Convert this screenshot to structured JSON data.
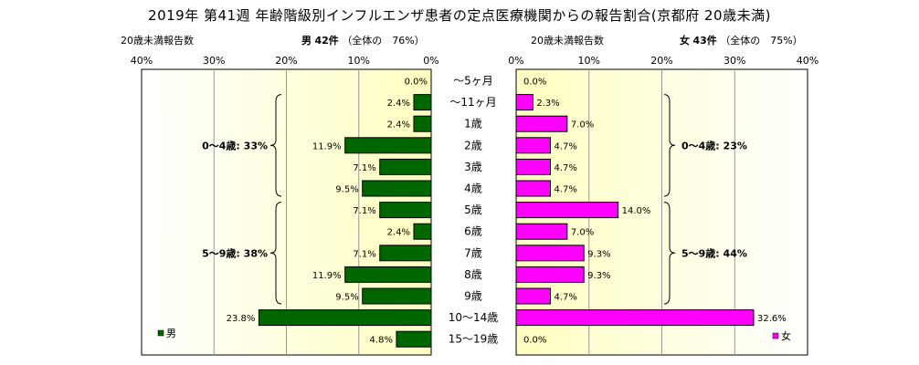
{
  "title": "2019年 第41週 年齢階級別インフルエンザ患者の定点医療機関からの報告割合(京都府 20歳未満)",
  "left_header": {
    "count_label": "20歳未満報告数",
    "sex": "男",
    "count": "42件",
    "share": "（全体の　76%）"
  },
  "right_header": {
    "count_label": "20歳未満報告数",
    "sex": "女",
    "count": "43件",
    "share": "（全体の　75%）"
  },
  "chart_data": {
    "type": "bar",
    "orientation": "horizontal-butterfly",
    "categories": [
      "～5ヶ月",
      "～11ヶ月",
      "1歳",
      "2歳",
      "3歳",
      "4歳",
      "5歳",
      "6歳",
      "7歳",
      "8歳",
      "9歳",
      "10～14歳",
      "15～19歳"
    ],
    "series": [
      {
        "name": "男",
        "values": [
          0.0,
          2.4,
          2.4,
          11.9,
          7.1,
          9.5,
          7.1,
          2.4,
          7.1,
          11.9,
          9.5,
          23.8,
          4.8
        ],
        "labels": [
          "0.0%",
          "2.4%",
          "2.4%",
          "11.9%",
          "7.1%",
          "9.5%",
          "7.1%",
          "2.4%",
          "7.1%",
          "11.9%",
          "9.5%",
          "23.8%",
          "4.8%"
        ],
        "color": "#006600"
      },
      {
        "name": "女",
        "values": [
          0.0,
          2.3,
          7.0,
          4.7,
          4.7,
          4.7,
          14.0,
          7.0,
          9.3,
          9.3,
          4.7,
          32.6,
          0.0
        ],
        "labels": [
          "0.0%",
          "2.3%",
          "7.0%",
          "4.7%",
          "4.7%",
          "4.7%",
          "14.0%",
          "7.0%",
          "9.3%",
          "9.3%",
          "4.7%",
          "32.6%",
          "0.0%"
        ],
        "color": "#ff00ff"
      }
    ],
    "left_ticks": [
      "40%",
      "30%",
      "20%",
      "10%",
      "0%"
    ],
    "right_ticks": [
      "0%",
      "10%",
      "20%",
      "30%",
      "40%"
    ],
    "xlim": [
      0,
      40
    ],
    "grid": true,
    "plot_background": "#ffffcc",
    "annotations": {
      "male_0_4": "0～4歳: 33%",
      "male_5_9": "5～9歳: 38%",
      "female_0_4": "0～4歳: 23%",
      "female_5_9": "5～9歳: 44%"
    },
    "legend_position": "bottom-corners"
  }
}
